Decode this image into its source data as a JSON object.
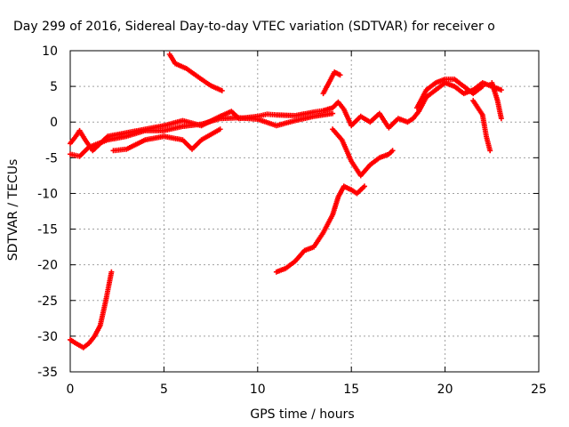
{
  "chart_data": {
    "type": "scatter",
    "title": "Day 299 of 2016, Sidereal Day-to-day VTEC variation (SDTVAR) for receiver o",
    "xlabel": "GPS time / hours",
    "ylabel": "SDTVAR / TECUs",
    "xlim": [
      0,
      25
    ],
    "ylim": [
      -35,
      10
    ],
    "xticks": [
      0,
      5,
      10,
      15,
      20,
      25
    ],
    "yticks": [
      -35,
      -30,
      -25,
      -20,
      -15,
      -10,
      -5,
      0,
      5,
      10
    ],
    "grid": true,
    "legend": "none",
    "marker_color": "#ff0000",
    "series": [
      {
        "points": [
          [
            0.0,
            -30.5
          ],
          [
            0.3,
            -31.0
          ],
          [
            0.7,
            -31.6
          ],
          [
            1.0,
            -31.0
          ],
          [
            1.3,
            -30.0
          ],
          [
            1.6,
            -28.5
          ],
          [
            1.9,
            -25.0
          ],
          [
            2.2,
            -21.0
          ]
        ]
      },
      {
        "points": [
          [
            5.3,
            9.5
          ],
          [
            5.6,
            8.2
          ],
          [
            6.2,
            7.5
          ],
          [
            7.0,
            6.0
          ],
          [
            7.5,
            5.1
          ],
          [
            8.1,
            4.4
          ]
        ]
      },
      {
        "points": [
          [
            0.0,
            -3.0
          ],
          [
            0.3,
            -2.0
          ],
          [
            0.5,
            -1.2
          ],
          [
            0.8,
            -2.5
          ],
          [
            1.2,
            -4.0
          ],
          [
            1.6,
            -3.0
          ],
          [
            2.0,
            -2.0
          ],
          [
            3.0,
            -1.5
          ],
          [
            4.0,
            -1.0
          ],
          [
            5.0,
            -0.5
          ],
          [
            6.0,
            0.2
          ],
          [
            7.0,
            -0.5
          ],
          [
            8.0,
            0.8
          ],
          [
            8.6,
            1.5
          ],
          [
            9.0,
            0.5
          ],
          [
            10.0,
            0.8
          ],
          [
            10.5,
            1.1
          ],
          [
            11.0,
            1.0
          ],
          [
            12.0,
            0.9
          ],
          [
            13.0,
            1.4
          ],
          [
            13.5,
            1.6
          ],
          [
            14.0,
            2.0
          ],
          [
            14.3,
            2.8
          ],
          [
            14.6,
            1.8
          ],
          [
            15.0,
            -0.5
          ],
          [
            15.5,
            0.8
          ],
          [
            16.0,
            0.0
          ],
          [
            16.5,
            1.2
          ],
          [
            17.0,
            -0.8
          ],
          [
            17.5,
            0.5
          ],
          [
            18.0,
            0.0
          ],
          [
            18.3,
            0.5
          ],
          [
            18.6,
            1.5
          ],
          [
            19.0,
            3.5
          ],
          [
            19.5,
            4.5
          ],
          [
            20.0,
            5.5
          ],
          [
            20.5,
            5.0
          ],
          [
            21.0,
            4.0
          ],
          [
            21.5,
            4.5
          ],
          [
            22.0,
            5.5
          ],
          [
            22.5,
            5.0
          ],
          [
            23.0,
            4.5
          ]
        ]
      },
      {
        "points": [
          [
            0.0,
            -4.5
          ],
          [
            0.5,
            -4.8
          ],
          [
            1.0,
            -3.5
          ],
          [
            2.0,
            -2.5
          ],
          [
            3.0,
            -2.0
          ],
          [
            4.0,
            -1.2
          ],
          [
            5.0,
            -1.2
          ],
          [
            6.0,
            -0.6
          ],
          [
            7.0,
            -0.3
          ],
          [
            8.0,
            0.5
          ],
          [
            9.0,
            0.6
          ],
          [
            10.0,
            0.4
          ],
          [
            11.0,
            -0.5
          ],
          [
            12.0,
            0.2
          ],
          [
            13.0,
            0.8
          ],
          [
            14.0,
            1.2
          ]
        ]
      },
      {
        "points": [
          [
            2.3,
            -4.0
          ],
          [
            3.0,
            -3.8
          ],
          [
            4.0,
            -2.5
          ],
          [
            5.0,
            -2.0
          ],
          [
            6.0,
            -2.5
          ],
          [
            6.5,
            -3.8
          ],
          [
            7.0,
            -2.5
          ],
          [
            8.0,
            -1.0
          ]
        ]
      },
      {
        "points": [
          [
            11.0,
            -21.0
          ],
          [
            11.5,
            -20.5
          ],
          [
            12.0,
            -19.5
          ],
          [
            12.5,
            -18.0
          ],
          [
            13.0,
            -17.5
          ],
          [
            13.5,
            -15.5
          ],
          [
            14.0,
            -13.0
          ],
          [
            14.3,
            -10.5
          ],
          [
            14.6,
            -9.0
          ],
          [
            15.0,
            -9.5
          ],
          [
            15.3,
            -10.0
          ],
          [
            15.7,
            -9.0
          ]
        ]
      },
      {
        "points": [
          [
            14.0,
            -1.0
          ],
          [
            14.5,
            -2.5
          ],
          [
            15.0,
            -5.5
          ],
          [
            15.5,
            -7.5
          ],
          [
            16.0,
            -6.0
          ],
          [
            16.5,
            -5.0
          ],
          [
            17.0,
            -4.5
          ],
          [
            17.2,
            -4.0
          ]
        ]
      },
      {
        "points": [
          [
            13.5,
            4.0
          ],
          [
            13.8,
            5.5
          ],
          [
            14.1,
            7.0
          ],
          [
            14.4,
            6.6
          ]
        ]
      },
      {
        "points": [
          [
            21.5,
            3.0
          ],
          [
            22.0,
            1.0
          ],
          [
            22.2,
            -2.0
          ],
          [
            22.4,
            -4.0
          ]
        ]
      },
      {
        "points": [
          [
            22.5,
            5.5
          ],
          [
            22.8,
            3.0
          ],
          [
            23.0,
            0.5
          ]
        ]
      },
      {
        "points": [
          [
            18.5,
            2.0
          ],
          [
            19.0,
            4.5
          ],
          [
            19.5,
            5.5
          ],
          [
            20.0,
            6.0
          ],
          [
            20.5,
            6.0
          ],
          [
            21.0,
            5.0
          ],
          [
            21.5,
            4.0
          ],
          [
            22.0,
            5.0
          ]
        ]
      }
    ]
  }
}
